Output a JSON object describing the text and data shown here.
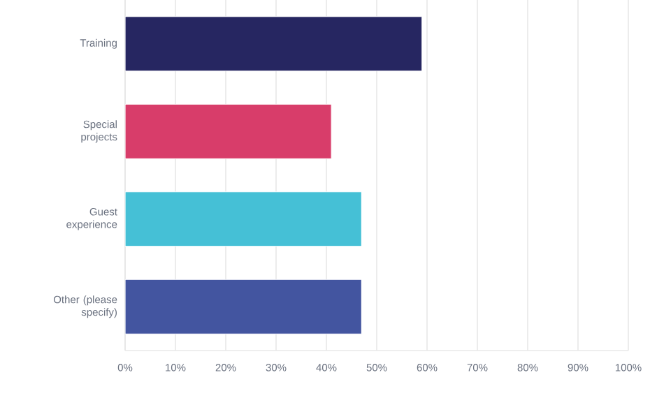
{
  "chart_data": {
    "type": "bar",
    "orientation": "horizontal",
    "categories": [
      "Training",
      "Special projects",
      "Guest experience",
      "Other (please specify)"
    ],
    "values": [
      59,
      41,
      47,
      47
    ],
    "colors": [
      "#262661",
      "#d83d6a",
      "#45c0d6",
      "#4355a0"
    ],
    "xlim": [
      0,
      100
    ],
    "xticks": [
      {
        "value": 0,
        "label": "0%"
      },
      {
        "value": 10,
        "label": "10%"
      },
      {
        "value": 20,
        "label": "20%"
      },
      {
        "value": 30,
        "label": "30%"
      },
      {
        "value": 40,
        "label": "40%"
      },
      {
        "value": 50,
        "label": "50%"
      },
      {
        "value": 60,
        "label": "60%"
      },
      {
        "value": 70,
        "label": "70%"
      },
      {
        "value": 80,
        "label": "80%"
      },
      {
        "value": 90,
        "label": "90%"
      },
      {
        "value": 100,
        "label": "100%"
      }
    ],
    "grid": "x"
  }
}
